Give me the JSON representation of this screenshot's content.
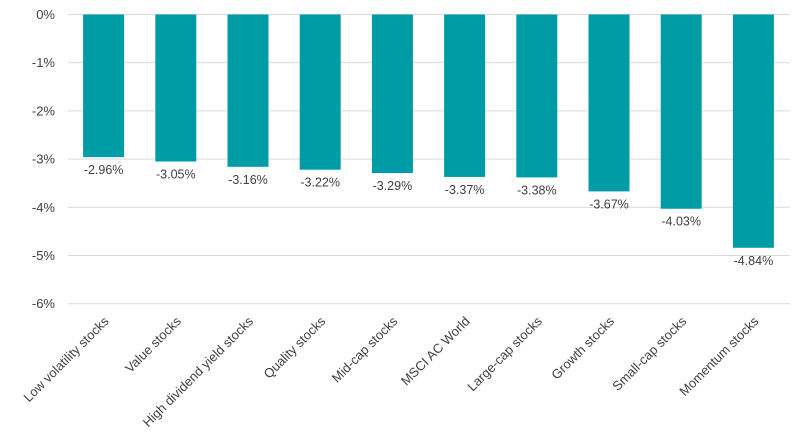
{
  "chart_data": {
    "type": "bar",
    "categories": [
      "Low volatility stocks",
      "Value stocks",
      "High dividend yield stocks",
      "Quality stocks",
      "Mid-cap stocks",
      "MSCI AC World",
      "Large-cap stocks",
      "Growth stocks",
      "Small-cap stocks",
      "Momentum stocks"
    ],
    "values": [
      -2.96,
      -3.05,
      -3.16,
      -3.22,
      -3.29,
      -3.37,
      -3.38,
      -3.67,
      -4.03,
      -4.84
    ],
    "data_labels": [
      "-2.96%",
      "-3.05%",
      "-3.16%",
      "-3.22%",
      "-3.29%",
      "-3.37%",
      "-3.38%",
      "-3.67%",
      "-4.03%",
      "-4.84%"
    ],
    "yticks": [
      0,
      -1,
      -2,
      -3,
      -4,
      -5,
      -6
    ],
    "ytick_labels": [
      "0%",
      "-1%",
      "-2%",
      "-3%",
      "-4%",
      "-5%",
      "-6%"
    ],
    "ylim": [
      -6,
      0
    ],
    "grid": true,
    "title": "",
    "xlabel": "",
    "ylabel": "",
    "colors": {
      "bar": "#009ca6",
      "grid": "#d9d9d9",
      "text": "#404040"
    }
  }
}
